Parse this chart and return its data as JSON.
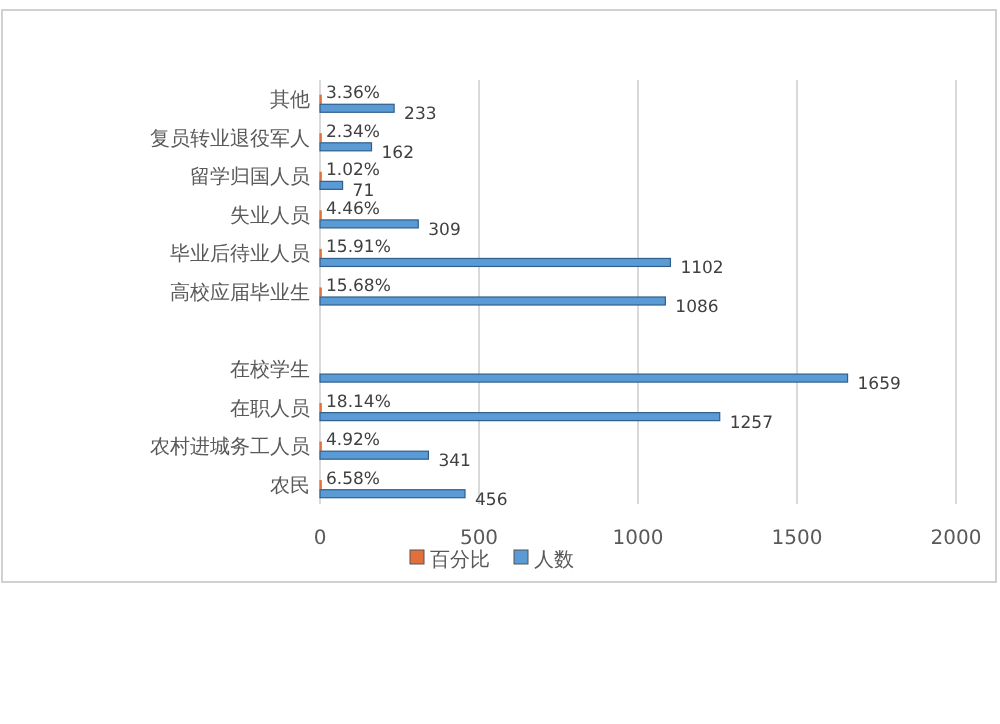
{
  "chart_data": {
    "type": "bar",
    "orientation": "horizontal",
    "categories": [
      "其他",
      "复员转业退役军人",
      "留学归国人员",
      "失业人员",
      "毕业后待业人员",
      "高校应届毕业生",
      null,
      "在校学生",
      "在职人员",
      "农村进城务工人员",
      "农民"
    ],
    "series": [
      {
        "name": "百分比",
        "color": "#e2703a",
        "values": [
          0.0336,
          0.0234,
          0.0102,
          0.0446,
          0.1591,
          0.1568,
          null,
          null,
          0.1814,
          0.0492,
          0.0658
        ],
        "value_labels": [
          "3.36%",
          "2.34%",
          "1.02%",
          "4.46%",
          "15.91%",
          "15.68%",
          null,
          null,
          "18.14%",
          "4.92%",
          "6.58%"
        ]
      },
      {
        "name": "人数",
        "color": "#5b9bd5",
        "values": [
          233,
          162,
          71,
          309,
          1102,
          1086,
          null,
          1659,
          1257,
          341,
          456
        ],
        "value_labels": [
          "233",
          "162",
          "71",
          "309",
          "1102",
          "1086",
          null,
          "1659",
          "1257",
          "341",
          "456"
        ]
      }
    ],
    "xlim": [
      0,
      2000
    ],
    "xticks": [
      0,
      500,
      1000,
      1500,
      2000
    ],
    "grid": "x",
    "legend": "bottom"
  }
}
